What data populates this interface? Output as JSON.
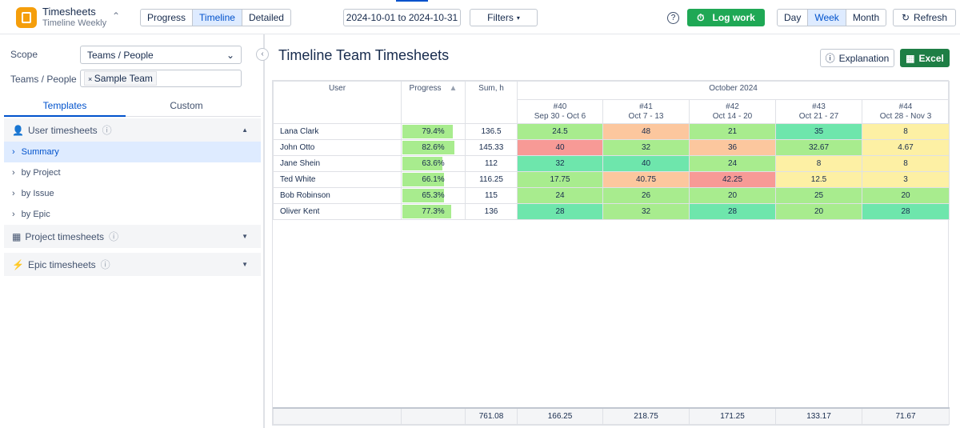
{
  "app": {
    "name": "Timesheets",
    "subtitle": "Timeline Weekly"
  },
  "toolbar": {
    "views": [
      "Progress",
      "Timeline",
      "Detailed"
    ],
    "active_view": 1,
    "date_range": "2024-10-01 to 2024-10-31",
    "filters": "Filters",
    "log_work": "Log work",
    "periods": [
      "Day",
      "Week",
      "Month"
    ],
    "active_period": 1,
    "refresh": "Refresh"
  },
  "sidebar": {
    "scope_label": "Scope",
    "scope_value": "Teams / People",
    "teams_label": "Teams / People",
    "team_chip": "Sample Team",
    "tabs": [
      "Templates",
      "Custom"
    ],
    "groups": [
      {
        "title": "User timesheets",
        "items": [
          "Summary",
          "by Project",
          "by Issue",
          "by Epic"
        ]
      },
      {
        "title": "Project timesheets"
      },
      {
        "title": "Epic timesheets"
      }
    ]
  },
  "report": {
    "title": "Timeline Team Timesheets",
    "explanation": "Explanation",
    "excel": "Excel",
    "columns": {
      "user": "User",
      "progress": "Progress",
      "sum": "Sum, h",
      "month": "October 2024",
      "weeks": [
        {
          "number": "#40",
          "range": "Sep 30 - Oct 6"
        },
        {
          "number": "#41",
          "range": "Oct 7 - 13"
        },
        {
          "number": "#42",
          "range": "Oct 14 - 20"
        },
        {
          "number": "#43",
          "range": "Oct 21 - 27"
        },
        {
          "number": "#44",
          "range": "Oct 28 - Nov 3"
        }
      ]
    },
    "rows": [
      {
        "user": "Lana Clark",
        "progress": 79.4,
        "progress_label": "79.4%",
        "sum": 136.5,
        "weeks": [
          24.5,
          48,
          21,
          35,
          8
        ],
        "colors": [
          "#a8ec8e",
          "#fcc79e",
          "#a8ec8e",
          "#6ee6ac",
          "#fdf0a4"
        ]
      },
      {
        "user": "John Otto",
        "progress": 82.6,
        "progress_label": "82.6%",
        "sum": 145.33,
        "weeks": [
          40,
          32,
          36,
          32.67,
          4.67
        ],
        "colors": [
          "#f79a96",
          "#a8ec8e",
          "#fcc79e",
          "#a8ec8e",
          "#fdf0a4"
        ]
      },
      {
        "user": "Jane Shein",
        "progress": 63.6,
        "progress_label": "63.6%",
        "sum": 112,
        "weeks": [
          32,
          40,
          24,
          8,
          8
        ],
        "colors": [
          "#6ee6ac",
          "#6ee6ac",
          "#a8ec8e",
          "#fdf0a4",
          "#fdf0a4"
        ]
      },
      {
        "user": "Ted White",
        "progress": 66.1,
        "progress_label": "66.1%",
        "sum": 116.25,
        "weeks": [
          17.75,
          40.75,
          42.25,
          12.5,
          3
        ],
        "colors": [
          "#a8ec8e",
          "#fcc79e",
          "#f79a96",
          "#fdf0a4",
          "#fdf0a4"
        ]
      },
      {
        "user": "Bob Robinson",
        "progress": 65.3,
        "progress_label": "65.3%",
        "sum": 115,
        "weeks": [
          24,
          26,
          20,
          25,
          20
        ],
        "colors": [
          "#a8ec8e",
          "#a8ec8e",
          "#a8ec8e",
          "#a8ec8e",
          "#a8ec8e"
        ]
      },
      {
        "user": "Oliver Kent",
        "progress": 77.3,
        "progress_label": "77.3%",
        "sum": 136,
        "weeks": [
          28,
          32,
          28,
          20,
          28
        ],
        "colors": [
          "#6ee6ac",
          "#a8ec8e",
          "#6ee6ac",
          "#a8ec8e",
          "#6ee6ac"
        ]
      }
    ],
    "totals": {
      "sum": 761.08,
      "weeks": [
        166.25,
        218.75,
        171.25,
        133.17,
        71.67
      ]
    }
  }
}
